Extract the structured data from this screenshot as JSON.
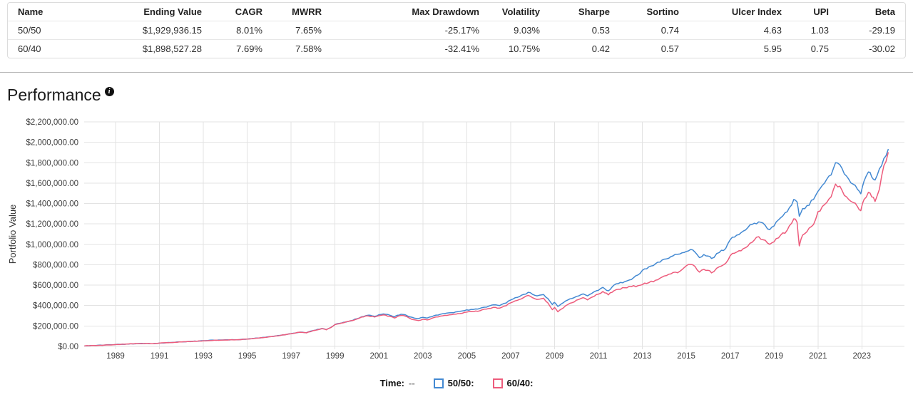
{
  "table": {
    "headers": [
      "Name",
      "Ending Value",
      "CAGR",
      "MWRR",
      "Max Drawdown",
      "Volatility",
      "Sharpe",
      "Sortino",
      "Ulcer Index",
      "UPI",
      "Beta"
    ],
    "rows": [
      [
        "50/50",
        "$1,929,936.15",
        "8.01%",
        "7.65%",
        "-25.17%",
        "9.03%",
        "0.53",
        "0.74",
        "4.63",
        "1.03",
        "-29.19"
      ],
      [
        "60/40",
        "$1,898,527.28",
        "7.69%",
        "7.58%",
        "-32.41%",
        "10.75%",
        "0.42",
        "0.57",
        "5.95",
        "0.75",
        "-30.02"
      ]
    ]
  },
  "section": {
    "title": "Performance"
  },
  "chart_data": {
    "type": "line",
    "title": "Performance",
    "xlabel": "",
    "ylabel": "Portfolio Value",
    "grid": true,
    "ylim": [
      0,
      2200000
    ],
    "x_range": [
      1987.57,
      2024.94
    ],
    "y_ticks": [
      {
        "value": 0,
        "label": "$0.00"
      },
      {
        "value": 200000,
        "label": "$200,000.00"
      },
      {
        "value": 400000,
        "label": "$400,000.00"
      },
      {
        "value": 600000,
        "label": "$600,000.00"
      },
      {
        "value": 800000,
        "label": "$800,000.00"
      },
      {
        "value": 1000000,
        "label": "$1,000,000.00"
      },
      {
        "value": 1200000,
        "label": "$1,200,000.00"
      },
      {
        "value": 1400000,
        "label": "$1,400,000.00"
      },
      {
        "value": 1600000,
        "label": "$1,600,000.00"
      },
      {
        "value": 1800000,
        "label": "$1,800,000.00"
      },
      {
        "value": 2000000,
        "label": "$2,000,000.00"
      },
      {
        "value": 2200000,
        "label": "$2,200,000.00"
      }
    ],
    "x_ticks": [
      {
        "value": 1989,
        "label": "1989"
      },
      {
        "value": 1991,
        "label": "1991"
      },
      {
        "value": 1993,
        "label": "1993"
      },
      {
        "value": 1995,
        "label": "1995"
      },
      {
        "value": 1997,
        "label": "1997"
      },
      {
        "value": 1999,
        "label": "1999"
      },
      {
        "value": 2001,
        "label": "2001"
      },
      {
        "value": 2003,
        "label": "2003"
      },
      {
        "value": 2005,
        "label": "2005"
      },
      {
        "value": 2007,
        "label": "2007"
      },
      {
        "value": 2009,
        "label": "2009"
      },
      {
        "value": 2011,
        "label": "2011"
      },
      {
        "value": 2013,
        "label": "2013"
      },
      {
        "value": 2015,
        "label": "2015"
      },
      {
        "value": 2017,
        "label": "2017"
      },
      {
        "value": 2019,
        "label": "2019"
      },
      {
        "value": 2021,
        "label": "2021"
      },
      {
        "value": 2023,
        "label": "2023"
      }
    ],
    "x": [
      1987.6,
      1988.0,
      1988.5,
      1989.0,
      1989.5,
      1990.0,
      1990.4,
      1990.7,
      1991.0,
      1991.5,
      1992.0,
      1992.5,
      1993.0,
      1993.5,
      1994.0,
      1994.5,
      1995.0,
      1995.5,
      1996.0,
      1996.5,
      1997.0,
      1997.4,
      1997.7,
      1998.0,
      1998.4,
      1998.6,
      1998.8,
      1999.0,
      1999.3,
      1999.6,
      2000.0,
      2000.2,
      2000.5,
      2000.8,
      2001.0,
      2001.2,
      2001.5,
      2001.7,
      2001.85,
      2002.0,
      2002.2,
      2002.4,
      2002.6,
      2002.8,
      2003.0,
      2003.2,
      2003.5,
      2003.8,
      2004.0,
      2004.3,
      2004.6,
      2005.0,
      2005.3,
      2005.6,
      2006.0,
      2006.3,
      2006.5,
      2006.8,
      2007.0,
      2007.3,
      2007.6,
      2007.8,
      2008.0,
      2008.2,
      2008.5,
      2008.7,
      2008.9,
      2009.0,
      2009.15,
      2009.3,
      2009.5,
      2009.8,
      2010.0,
      2010.3,
      2010.5,
      2010.7,
      2011.0,
      2011.2,
      2011.45,
      2011.7,
      2011.9,
      2012.2,
      2012.5,
      2012.8,
      2013.0,
      2013.3,
      2013.6,
      2014.0,
      2014.3,
      2014.7,
      2015.0,
      2015.3,
      2015.6,
      2015.8,
      2016.0,
      2016.15,
      2016.5,
      2016.8,
      2017.0,
      2017.3,
      2017.6,
      2018.0,
      2018.3,
      2018.6,
      2018.8,
      2019.0,
      2019.3,
      2019.6,
      2019.9,
      2020.05,
      2020.15,
      2020.3,
      2020.5,
      2020.8,
      2021.0,
      2021.3,
      2021.6,
      2021.8,
      2022.0,
      2022.2,
      2022.4,
      2022.6,
      2022.8,
      2022.95,
      2023.1,
      2023.3,
      2023.45,
      2023.6,
      2023.8,
      2024.0,
      2024.2
    ],
    "series": [
      {
        "name": "50/50",
        "color": "#4389d2",
        "values": [
          5000,
          9000,
          13000,
          18000,
          23000,
          27000,
          29000,
          26000,
          32000,
          38000,
          44000,
          49000,
          56000,
          61000,
          64000,
          65000,
          72000,
          82000,
          95000,
          108000,
          125000,
          140000,
          135000,
          155000,
          175000,
          165000,
          185000,
          215000,
          230000,
          245000,
          270000,
          290000,
          305000,
          295000,
          310000,
          318000,
          305000,
          290000,
          305000,
          315000,
          310000,
          290000,
          278000,
          272000,
          285000,
          278000,
          300000,
          315000,
          322000,
          330000,
          340000,
          358000,
          362000,
          372000,
          395000,
          408000,
          400000,
          425000,
          455000,
          480000,
          510000,
          530000,
          510000,
          495000,
          508000,
          468000,
          410000,
          430000,
          392000,
          415000,
          445000,
          470000,
          490000,
          515000,
          495000,
          520000,
          550000,
          578000,
          545000,
          600000,
          615000,
          635000,
          655000,
          700000,
          745000,
          780000,
          810000,
          855000,
          880000,
          905000,
          930000,
          945000,
          870000,
          900000,
          885000,
          862000,
          920000,
          960000,
          1045000,
          1090000,
          1130000,
          1195000,
          1220000,
          1185000,
          1145000,
          1180000,
          1260000,
          1320000,
          1440000,
          1415000,
          1275000,
          1350000,
          1380000,
          1440000,
          1520000,
          1600000,
          1680000,
          1800000,
          1780000,
          1690000,
          1640000,
          1590000,
          1540000,
          1495000,
          1620000,
          1710000,
          1660000,
          1630000,
          1740000,
          1840000,
          1929936
        ]
      },
      {
        "name": "60/40",
        "color": "#ed5c7c",
        "values": [
          5000,
          9000,
          13000,
          18000,
          23000,
          27000,
          29000,
          26000,
          32000,
          38000,
          44000,
          49000,
          55000,
          60000,
          63000,
          64000,
          71000,
          81000,
          94000,
          107000,
          124000,
          139000,
          133000,
          154000,
          174000,
          163000,
          184000,
          214000,
          229000,
          244000,
          268000,
          287000,
          299000,
          288000,
          301000,
          309000,
          294000,
          279000,
          294000,
          303000,
          297000,
          275000,
          261000,
          253000,
          266000,
          259000,
          282000,
          297000,
          304000,
          311000,
          321000,
          336000,
          340000,
          349000,
          371000,
          383000,
          375000,
          399000,
          427000,
          451000,
          480000,
          500000,
          477000,
          460000,
          472000,
          425000,
          360000,
          381000,
          339000,
          364000,
          398000,
          428000,
          453000,
          478000,
          456000,
          482000,
          512000,
          538000,
          505000,
          545000,
          560000,
          575000,
          585000,
          595000,
          605000,
          625000,
          648000,
          690000,
          710000,
          735000,
          790000,
          800000,
          728000,
          755000,
          745000,
          720000,
          780000,
          815000,
          888000,
          925000,
          958000,
          1020000,
          1075000,
          1040000,
          1000000,
          1025000,
          1090000,
          1140000,
          1250000,
          1215000,
          985000,
          1090000,
          1125000,
          1195000,
          1320000,
          1390000,
          1465000,
          1590000,
          1570000,
          1480000,
          1440000,
          1410000,
          1370000,
          1330000,
          1440000,
          1510000,
          1465000,
          1420000,
          1540000,
          1770000,
          1898527
        ]
      }
    ],
    "legend": {
      "position": "bottom",
      "time_label": "Time:",
      "time_value": "--",
      "items": [
        {
          "label": "50/50:",
          "color": "#4389d2"
        },
        {
          "label": "60/40:",
          "color": "#ed5c7c"
        }
      ]
    }
  }
}
